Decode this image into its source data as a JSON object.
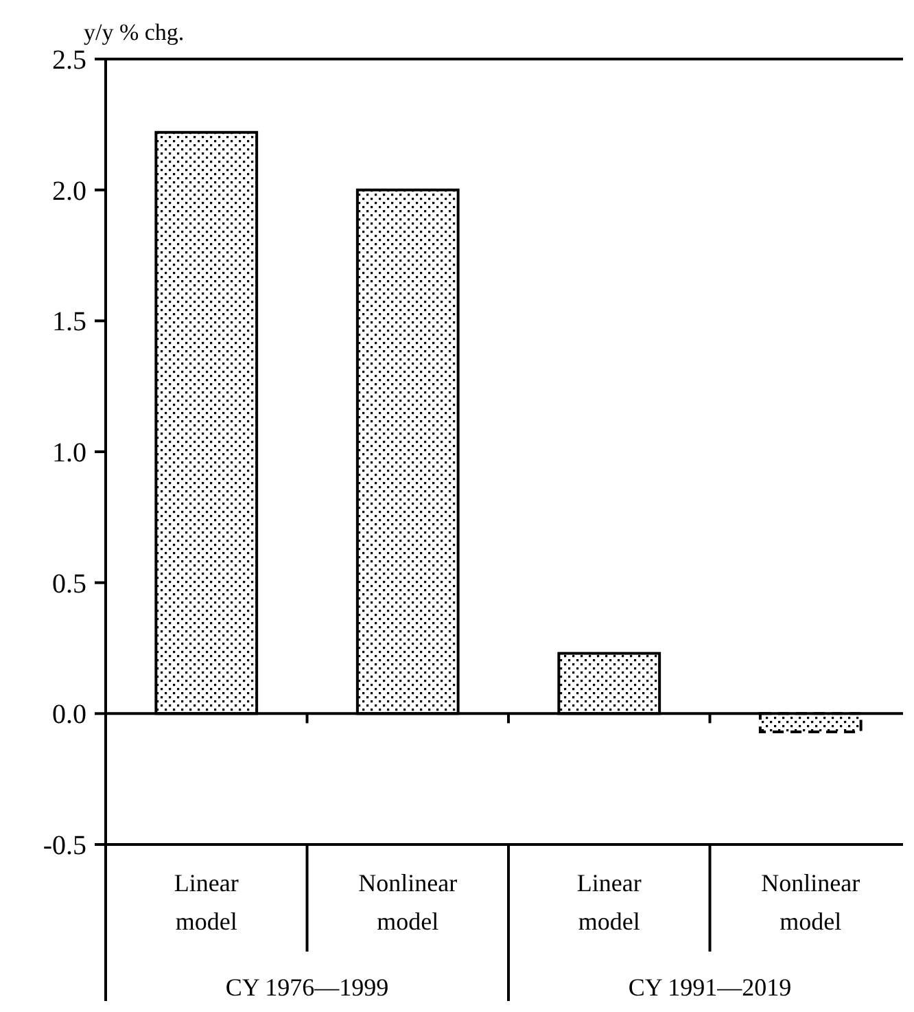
{
  "chart_data": {
    "type": "bar",
    "ylabel": "y/y % chg.",
    "categories": [
      "Linear model",
      "Nonlinear model",
      "Linear model",
      "Nonlinear model"
    ],
    "values": [
      2.22,
      2.0,
      0.23,
      -0.07
    ],
    "color": "#000000",
    "ylim": [
      -0.5,
      2.5
    ],
    "yticks": [
      {
        "value": -0.5,
        "label": "-0.5"
      },
      {
        "value": 0,
        "label": "0.0"
      },
      {
        "value": 0.5,
        "label": "0.5"
      },
      {
        "value": 1,
        "label": "1.0"
      },
      {
        "value": 1.5,
        "label": "1.5"
      },
      {
        "value": 2,
        "label": "2.0"
      },
      {
        "value": 2.5,
        "label": "2.5"
      }
    ],
    "annotations": [
      "CY 1976—1999",
      "CY 1991—2019"
    ]
  }
}
